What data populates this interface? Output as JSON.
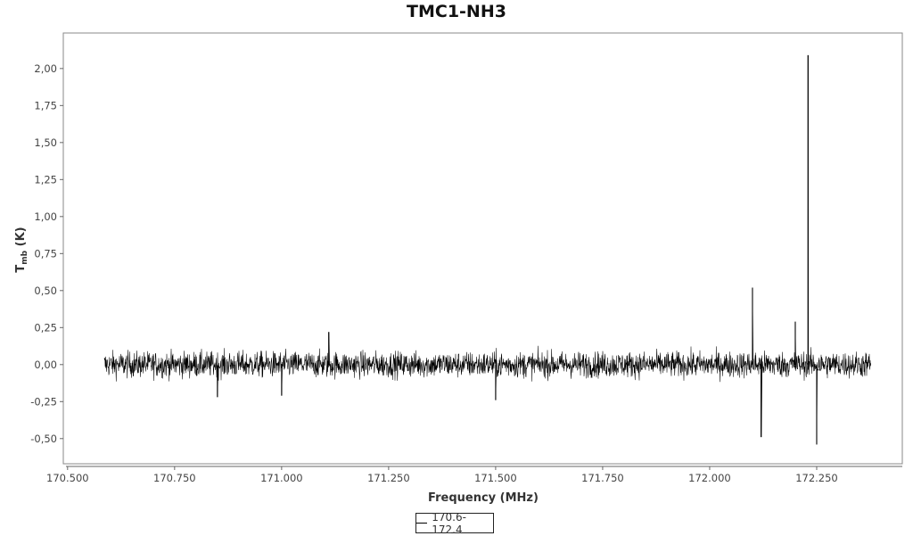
{
  "chart_data": {
    "type": "line",
    "title": "TMC1-NH3",
    "xlabel": "Frequency (MHz)",
    "ylabel_main": "T",
    "ylabel_sub": "mb",
    "ylabel_unit": " (K)",
    "xlim": [
      170.49,
      172.45
    ],
    "ylim": [
      -0.67,
      2.24
    ],
    "x_ticks": [
      170.5,
      170.75,
      171.0,
      171.25,
      171.5,
      171.75,
      172.0,
      172.25
    ],
    "x_tick_labels": [
      "170.500",
      "170.750",
      "171.000",
      "171.250",
      "171.500",
      "171.750",
      "172.000",
      "172.250"
    ],
    "y_ticks": [
      -0.5,
      -0.25,
      0.0,
      0.25,
      0.5,
      0.75,
      1.0,
      1.25,
      1.5,
      1.75,
      2.0
    ],
    "y_tick_labels": [
      "-0,50",
      "-0,25",
      "0,00",
      "0,25",
      "0,50",
      "0,75",
      "1,00",
      "1,25",
      "1,50",
      "1,75",
      "2,00"
    ],
    "grid": false,
    "legend_position": "bottom-center",
    "series": [
      {
        "name": "170.6-172.4",
        "color": "#000000",
        "x_range": [
          170.585,
          172.375
        ],
        "noise_band": [
          -0.15,
          0.15
        ],
        "notable_points": [
          {
            "x": 170.85,
            "y": -0.22
          },
          {
            "x": 171.0,
            "y": -0.21
          },
          {
            "x": 171.11,
            "y": 0.22
          },
          {
            "x": 171.5,
            "y": -0.24
          },
          {
            "x": 172.1,
            "y": 0.52
          },
          {
            "x": 172.12,
            "y": -0.49
          },
          {
            "x": 172.2,
            "y": 0.29
          },
          {
            "x": 172.23,
            "y": 2.09
          },
          {
            "x": 172.25,
            "y": -0.54
          }
        ]
      }
    ]
  }
}
